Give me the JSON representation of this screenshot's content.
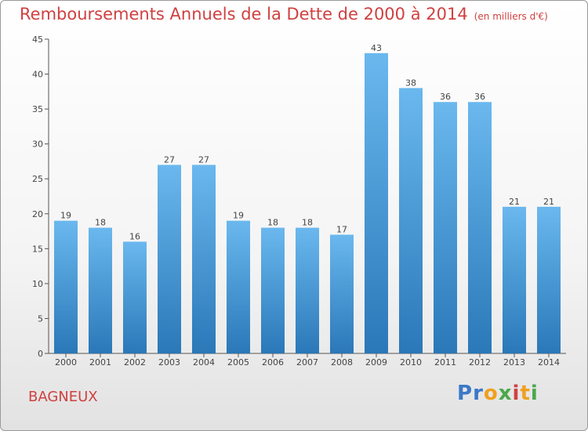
{
  "header": {
    "title": "Remboursements Annuels de la Dette de 2000 à 2014",
    "unit": "(en milliers d'€)"
  },
  "footer": {
    "commune": "BAGNEUX",
    "logo_text": "Proxiti"
  },
  "colors": {
    "title": "#d04040",
    "bar_light": "#6ab8ee",
    "bar_dark": "#2a78b8"
  },
  "chart_data": {
    "type": "bar",
    "title": "Remboursements Annuels de la Dette de 2000 à 2014",
    "xlabel": "",
    "ylabel": "",
    "categories": [
      "2000",
      "2001",
      "2002",
      "2003",
      "2004",
      "2005",
      "2006",
      "2007",
      "2008",
      "2009",
      "2010",
      "2011",
      "2012",
      "2013",
      "2014"
    ],
    "values": [
      19,
      18,
      16,
      27,
      27,
      19,
      18,
      18,
      17,
      43,
      38,
      36,
      36,
      21,
      21
    ],
    "ylim": [
      0,
      45
    ],
    "yticks": [
      0,
      5,
      10,
      15,
      20,
      25,
      30,
      35,
      40,
      45
    ],
    "grid": false,
    "legend": "none"
  }
}
